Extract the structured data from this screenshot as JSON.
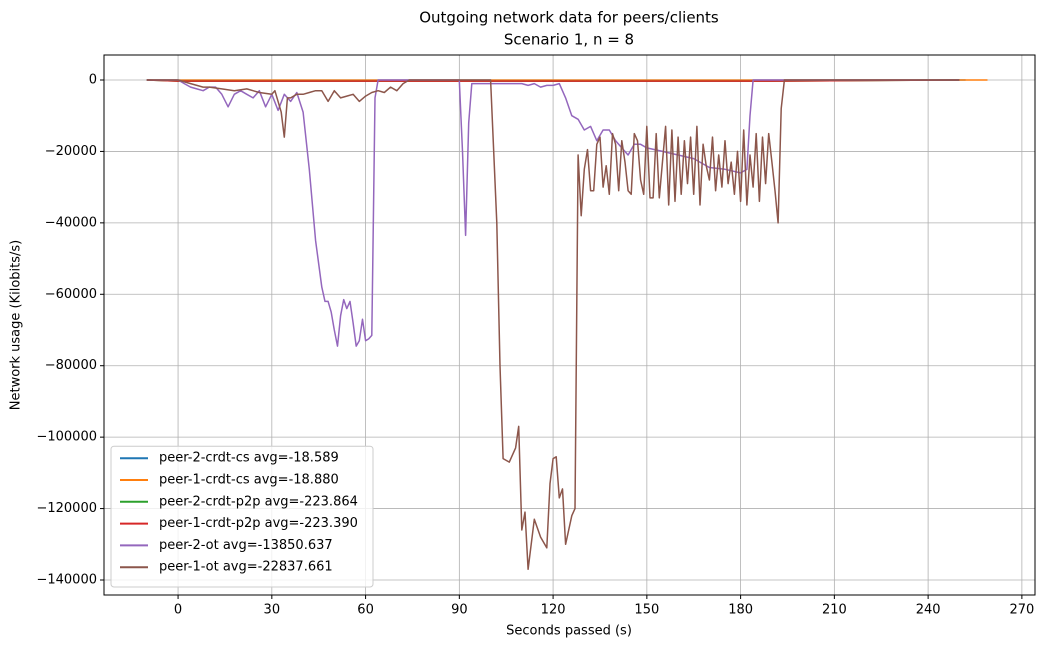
{
  "chart_data": {
    "type": "line",
    "title": [
      "Outgoing network data for peers/clients",
      "Scenario 1, n = 8"
    ],
    "x_label": "Seconds passed (s)",
    "y_label": "Network usage (Kilobits/s)",
    "xlim": [
      -23.7,
      274.2
    ],
    "ylim": [
      -144200,
      7000
    ],
    "xticks": [
      0,
      30,
      60,
      90,
      120,
      150,
      180,
      210,
      240,
      270
    ],
    "yticks": [
      0,
      {
        "value": -20000,
        "label": "−20000"
      },
      {
        "value": -40000,
        "label": "−40000"
      },
      {
        "value": -60000,
        "label": "−60000"
      },
      {
        "value": -80000,
        "label": "−80000"
      },
      {
        "value": -100000,
        "label": "−100000"
      },
      {
        "value": -120000,
        "label": "−120000"
      },
      {
        "value": -140000,
        "label": "−140000"
      }
    ],
    "grid": true,
    "legend": "lower left",
    "series": [
      {
        "name": "peer-2-crdt-cs avg=-18.589",
        "color": "#1f77b4",
        "x": [
          -10,
          0,
          100,
          200,
          252
        ],
        "values": [
          0,
          -20,
          -20,
          -20,
          0
        ]
      },
      {
        "name": "peer-1-crdt-cs avg=-18.880",
        "color": "#ff7f0e",
        "x": [
          -10,
          0,
          100,
          200,
          259
        ],
        "values": [
          0,
          -20,
          -20,
          -20,
          0
        ]
      },
      {
        "name": "peer-2-crdt-p2p avg=-223.864",
        "color": "#2ca02c",
        "x": [
          -10,
          0,
          60,
          120,
          190,
          250
        ],
        "values": [
          0,
          -300,
          -300,
          -300,
          -300,
          0
        ]
      },
      {
        "name": "peer-1-crdt-p2p avg=-223.390",
        "color": "#d62728",
        "x": [
          -10,
          0,
          60,
          120,
          190,
          250
        ],
        "values": [
          0,
          -300,
          -300,
          -300,
          -300,
          0
        ]
      },
      {
        "name": "peer-2-ot avg=-13850.637",
        "color": "#9467bd",
        "x": [
          -10,
          0,
          2,
          4,
          6,
          8,
          10,
          12,
          14,
          16,
          18,
          20,
          22,
          24,
          26,
          28,
          30,
          32,
          34,
          36,
          38,
          40,
          42,
          44,
          46,
          47,
          48,
          49,
          50,
          51,
          52,
          53,
          54,
          55,
          56,
          57,
          58,
          59,
          60,
          61,
          62,
          63,
          64,
          70,
          90,
          91,
          92,
          93,
          94,
          100,
          110,
          112,
          114,
          116,
          118,
          120,
          122,
          124,
          126,
          128,
          130,
          132,
          134,
          136,
          138,
          140,
          142,
          144,
          146,
          148,
          150,
          155,
          160,
          165,
          170,
          175,
          180,
          182,
          183,
          184,
          190,
          250
        ],
        "values": [
          0,
          0,
          -1000,
          -2000,
          -2500,
          -3000,
          -2000,
          -2000,
          -4000,
          -7500,
          -4000,
          -3000,
          -4000,
          -5000,
          -3000,
          -7500,
          -4000,
          -8500,
          -4000,
          -6000,
          -3500,
          -9000,
          -25000,
          -45000,
          -58000,
          -62000,
          -62000,
          -65000,
          -70000,
          -74500,
          -66000,
          -61500,
          -64000,
          -62000,
          -68000,
          -74500,
          -73000,
          -67000,
          -73000,
          -72500,
          -71500,
          -5000,
          0,
          0,
          0,
          -20000,
          -43500,
          -12000,
          -1000,
          -1000,
          -1000,
          -1500,
          -1000,
          -2000,
          -1500,
          -1500,
          -1000,
          -5000,
          -10000,
          -11000,
          -14000,
          -13000,
          -17000,
          -14000,
          -14000,
          -17000,
          -19000,
          -21000,
          -18000,
          -18000,
          -19000,
          -20000,
          -21000,
          -22000,
          -24500,
          -25000,
          -26000,
          -25000,
          -10000,
          0,
          0,
          0
        ]
      },
      {
        "name": "peer-1-ot avg=-22837.661",
        "color": "#8c564b",
        "x": [
          -10,
          0,
          4,
          8,
          10,
          14,
          18,
          22,
          26,
          30,
          31,
          33,
          34,
          35,
          36,
          38,
          40,
          42,
          44,
          46,
          48,
          50,
          52,
          54,
          56,
          58,
          60,
          62,
          64,
          66,
          68,
          70,
          72,
          74,
          100,
          102,
          103,
          104,
          106,
          108,
          109,
          110,
          111,
          112,
          113,
          114,
          116,
          118,
          119,
          120,
          121,
          122,
          123,
          124,
          125,
          126,
          127,
          128,
          129,
          130,
          131,
          132,
          133,
          134,
          135,
          136,
          137,
          138,
          139,
          140,
          141,
          142,
          143,
          144,
          145,
          146,
          147,
          148,
          149,
          150,
          151,
          152,
          153,
          154,
          156,
          157,
          158,
          159,
          160,
          161,
          162,
          163,
          164,
          165,
          166,
          167,
          168,
          169,
          170,
          171,
          172,
          173,
          174,
          175,
          176,
          177,
          178,
          179,
          180,
          181,
          182,
          183,
          184,
          185,
          186,
          187,
          188,
          189,
          190,
          191,
          192,
          193,
          194,
          250
        ],
        "values": [
          0,
          0,
          -1000,
          -2000,
          -2000,
          -2500,
          -3000,
          -2500,
          -3500,
          -4000,
          -3000,
          -9000,
          -16000,
          -5000,
          -5000,
          -4000,
          -4000,
          -3500,
          -3000,
          -3000,
          -6000,
          -3000,
          -5000,
          -4500,
          -4000,
          -6000,
          -4500,
          -3500,
          -3000,
          -3500,
          -2000,
          -3000,
          -1000,
          0,
          0,
          -40000,
          -80000,
          -106000,
          -107000,
          -103000,
          -97000,
          -126000,
          -121000,
          -137000,
          -130000,
          -123000,
          -128000,
          -131000,
          -113000,
          -106000,
          -105500,
          -117000,
          -114500,
          -130000,
          -126000,
          -122000,
          -120000,
          -21000,
          -38000,
          -25000,
          -19500,
          -31000,
          -31000,
          -18000,
          -16000,
          -30000,
          -24000,
          -32000,
          -15000,
          -18000,
          -31000,
          -17000,
          -23000,
          -31000,
          -32000,
          -15000,
          -17000,
          -28000,
          -32000,
          -13000,
          -33000,
          -33000,
          -15000,
          -33000,
          -13000,
          -35000,
          -14000,
          -34000,
          -16000,
          -32000,
          -17000,
          -29000,
          -16000,
          -32000,
          -13000,
          -35000,
          -18000,
          -24000,
          -28000,
          -16000,
          -31000,
          -21000,
          -30000,
          -17000,
          -29000,
          -23000,
          -32000,
          -20000,
          -34000,
          -14000,
          -35000,
          -21000,
          -30000,
          -15000,
          -34000,
          -16000,
          -29000,
          -15000,
          -23000,
          -31000,
          -40000,
          -8000,
          0,
          0
        ]
      }
    ]
  }
}
